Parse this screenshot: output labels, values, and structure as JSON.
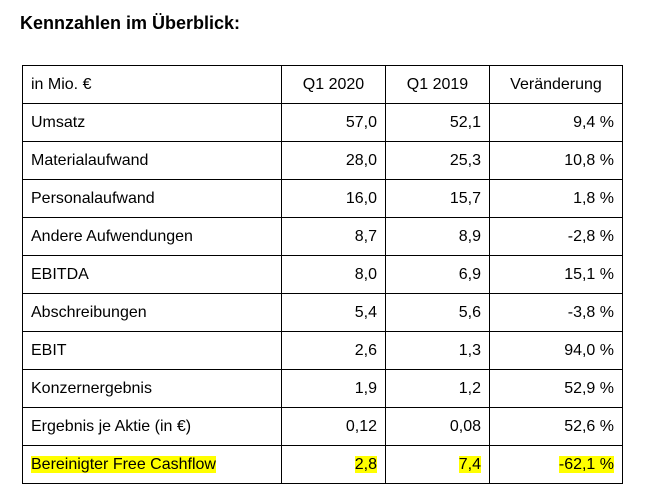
{
  "title": "Kennzahlen im Überblick:",
  "table": {
    "headers": [
      "in Mio. €",
      "Q1 2020",
      "Q1 2019",
      "Veränderung"
    ],
    "rows": [
      [
        "Umsatz",
        "57,0",
        "52,1",
        "9,4 %"
      ],
      [
        "Materialaufwand",
        "28,0",
        "25,3",
        "10,8 %"
      ],
      [
        "Personalaufwand",
        "16,0",
        "15,7",
        "1,8 %"
      ],
      [
        "Andere Aufwendungen",
        "8,7",
        "8,9",
        "-2,8 %"
      ],
      [
        "EBITDA",
        "8,0",
        "6,9",
        "15,1 %"
      ],
      [
        "Abschreibungen",
        "5,4",
        "5,6",
        "-3,8 %"
      ],
      [
        "EBIT",
        "2,6",
        "1,3",
        "94,0 %"
      ],
      [
        "Konzernergebnis",
        "1,9",
        "1,2",
        "52,9 %"
      ],
      [
        "Ergebnis je Aktie (in €)",
        "0,12",
        "0,08",
        "52,6 %"
      ],
      [
        "Bereinigter Free Cashflow",
        "2,8",
        "7,4",
        "-62,1 %"
      ]
    ],
    "highlight_color": "#ffff00",
    "highlighted_row_index": 9
  }
}
